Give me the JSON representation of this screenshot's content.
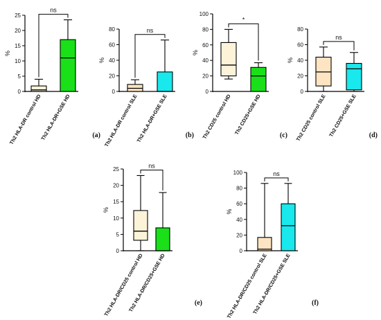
{
  "chart_data": [
    {
      "type": "boxplot",
      "panel_label": "(a)",
      "ylabel": "%",
      "ylim": [
        0,
        25
      ],
      "yticks": [
        0,
        5,
        10,
        15,
        20,
        25
      ],
      "significance": "ns",
      "colors": [
        "#fdf3d9",
        "#19e019"
      ],
      "boxes": [
        {
          "name": "Th2 HLA-DR control HD",
          "min": 0,
          "q1": 0,
          "median": 0.5,
          "q3": 1.8,
          "max": 4
        },
        {
          "name": "Th2 HLA-DR+GSE HD",
          "min": 0,
          "q1": 0,
          "median": 11,
          "q3": 17,
          "max": 23.5
        }
      ]
    },
    {
      "type": "boxplot",
      "panel_label": "(b)",
      "ylabel": "%",
      "ylim": [
        0,
        80
      ],
      "yticks": [
        0,
        20,
        40,
        60,
        80
      ],
      "significance": "ns",
      "colors": [
        "#fde4c2",
        "#19e8ec"
      ],
      "boxes": [
        {
          "name": "Th2 HLA-DR control SLE",
          "min": 0,
          "q1": 0,
          "median": 4,
          "q3": 9,
          "max": 15
        },
        {
          "name": "Th2 HLA-DR+GSE SLE",
          "min": 0,
          "q1": 0,
          "median": 0,
          "q3": 25,
          "max": 66
        }
      ]
    },
    {
      "type": "boxplot",
      "panel_label": "(c)",
      "ylabel": "%",
      "ylim": [
        0,
        100
      ],
      "yticks": [
        0,
        20,
        40,
        60,
        80,
        100
      ],
      "significance": "*",
      "colors": [
        "#fdf3d9",
        "#19e019"
      ],
      "boxes": [
        {
          "name": "Th2 CD25 control HD",
          "min": 16,
          "q1": 20,
          "median": 34,
          "q3": 63,
          "max": 80
        },
        {
          "name": "Th2 CD25+GSE HD",
          "min": 0,
          "q1": 0,
          "median": 20,
          "q3": 31,
          "max": 37
        }
      ]
    },
    {
      "type": "boxplot",
      "panel_label": "(d)",
      "ylabel": "%",
      "ylim": [
        0,
        80
      ],
      "yticks": [
        0,
        20,
        40,
        60,
        80
      ],
      "significance": "ns",
      "colors": [
        "#fde4c2",
        "#19e8ec"
      ],
      "boxes": [
        {
          "name": "Th2 CD25 control SLE",
          "min": 0,
          "q1": 7,
          "median": 25,
          "q3": 44,
          "max": 57
        },
        {
          "name": "Th2 CD25+GSE SLE",
          "min": 0,
          "q1": 2,
          "median": 29,
          "q3": 36,
          "max": 50
        }
      ]
    },
    {
      "type": "boxplot",
      "panel_label": "(e)",
      "ylabel": "%",
      "ylim": [
        0,
        25
      ],
      "yticks": [
        0,
        5,
        10,
        15,
        20,
        25
      ],
      "significance": "ns",
      "colors": [
        "#fdf3d9",
        "#19e019"
      ],
      "boxes": [
        {
          "name": "Th2 HLA-DR/CD25 control HD",
          "min": 0,
          "q1": 3.2,
          "median": 6,
          "q3": 12.3,
          "max": 23
        },
        {
          "name": "Th2 HLA-DR/CD25+GSE HD",
          "min": 0,
          "q1": 0,
          "median": 0,
          "q3": 7,
          "max": 17.8
        }
      ]
    },
    {
      "type": "boxplot",
      "panel_label": "(f)",
      "ylabel": "%",
      "ylim": [
        0,
        100
      ],
      "yticks": [
        0,
        20,
        40,
        60,
        80,
        100
      ],
      "significance": "ns",
      "colors": [
        "#fde4c2",
        "#19e8ec"
      ],
      "boxes": [
        {
          "name": "Th2 HLA-DR/CD25 control SLE",
          "min": 0,
          "q1": 0,
          "median": 2,
          "q3": 17,
          "max": 86
        },
        {
          "name": "Th2 HLA-DR/CD25+GSE SLE",
          "min": 0,
          "q1": 0,
          "median": 32,
          "q3": 60,
          "max": 86
        }
      ]
    }
  ]
}
